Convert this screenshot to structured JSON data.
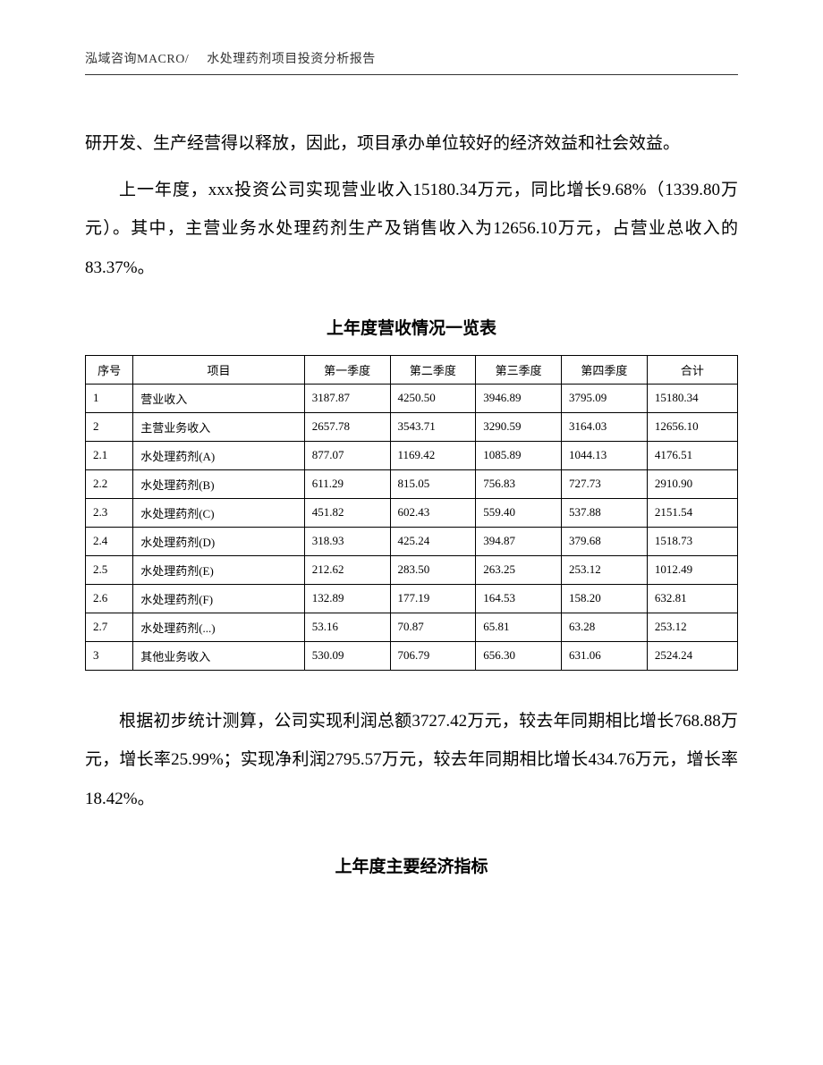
{
  "header": {
    "left": "泓域咨询MACRO/",
    "right": "水处理药剂项目投资分析报告"
  },
  "paragraphs": {
    "p1": "研开发、生产经营得以释放，因此，项目承办单位较好的经济效益和社会效益。",
    "p2": "上一年度，xxx投资公司实现营业收入15180.34万元，同比增长9.68%（1339.80万元）。其中，主营业务水处理药剂生产及销售收入为12656.10万元，占营业总收入的83.37%。",
    "p3": "根据初步统计测算，公司实现利润总额3727.42万元，较去年同期相比增长768.88万元，增长率25.99%；实现净利润2795.57万元，较去年同期相比增长434.76万元，增长率18.42%。"
  },
  "table1": {
    "title": "上年度营收情况一览表",
    "headers": {
      "seq": "序号",
      "name": "项目",
      "q1": "第一季度",
      "q2": "第二季度",
      "q3": "第三季度",
      "q4": "第四季度",
      "total": "合计"
    },
    "rows": [
      {
        "seq": "1",
        "name": "营业收入",
        "q1": "3187.87",
        "q2": "4250.50",
        "q3": "3946.89",
        "q4": "3795.09",
        "total": "15180.34"
      },
      {
        "seq": "2",
        "name": "主营业务收入",
        "q1": "2657.78",
        "q2": "3543.71",
        "q3": "3290.59",
        "q4": "3164.03",
        "total": "12656.10"
      },
      {
        "seq": "2.1",
        "name": "水处理药剂(A)",
        "q1": "877.07",
        "q2": "1169.42",
        "q3": "1085.89",
        "q4": "1044.13",
        "total": "4176.51"
      },
      {
        "seq": "2.2",
        "name": "水处理药剂(B)",
        "q1": "611.29",
        "q2": "815.05",
        "q3": "756.83",
        "q4": "727.73",
        "total": "2910.90"
      },
      {
        "seq": "2.3",
        "name": "水处理药剂(C)",
        "q1": "451.82",
        "q2": "602.43",
        "q3": "559.40",
        "q4": "537.88",
        "total": "2151.54"
      },
      {
        "seq": "2.4",
        "name": "水处理药剂(D)",
        "q1": "318.93",
        "q2": "425.24",
        "q3": "394.87",
        "q4": "379.68",
        "total": "1518.73"
      },
      {
        "seq": "2.5",
        "name": "水处理药剂(E)",
        "q1": "212.62",
        "q2": "283.50",
        "q3": "263.25",
        "q4": "253.12",
        "total": "1012.49"
      },
      {
        "seq": "2.6",
        "name": "水处理药剂(F)",
        "q1": "132.89",
        "q2": "177.19",
        "q3": "164.53",
        "q4": "158.20",
        "total": "632.81"
      },
      {
        "seq": "2.7",
        "name": "水处理药剂(...)",
        "q1": "53.16",
        "q2": "70.87",
        "q3": "65.81",
        "q4": "63.28",
        "total": "253.12"
      },
      {
        "seq": "3",
        "name": "其他业务收入",
        "q1": "530.09",
        "q2": "706.79",
        "q3": "656.30",
        "q4": "631.06",
        "total": "2524.24"
      }
    ]
  },
  "section2": {
    "title": "上年度主要经济指标"
  }
}
